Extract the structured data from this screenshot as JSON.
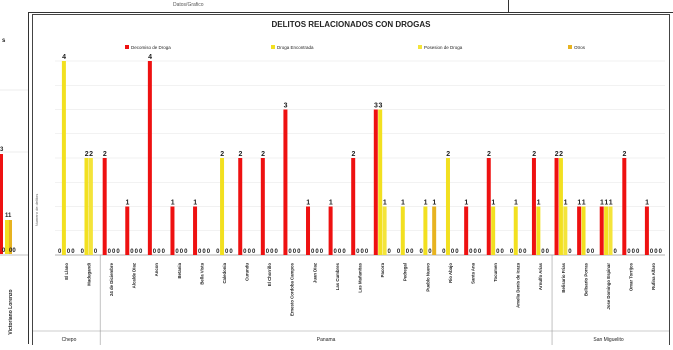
{
  "header": {
    "subtitle": "Datos/Grafico"
  },
  "left_partial": {
    "panel_label": "s",
    "value_label": "3",
    "tick_labels": [
      "11",
      "0",
      "00"
    ],
    "category_label": "Victoriano Lorenzo"
  },
  "colors": {
    "decomiso": "#ee1111",
    "encontrada": "#f2e020",
    "posesion": "#f4e43a",
    "otros": "#e7b320",
    "grid": "#e4e4e4",
    "title": "#222222"
  },
  "chart_data": {
    "type": "bar",
    "title": "DELITOS RELACIONADOS CON DROGAS",
    "ylabel": "Numero de delitos",
    "ylim": [
      0,
      4
    ],
    "legend_position": "top",
    "categories": [
      "El Llano",
      "Madugandi",
      "24 de Diciembre",
      "Alcalde Diaz",
      "Ancon",
      "Betania",
      "Bella Vista",
      "Caledonia",
      "Curundu",
      "El Chorrillo",
      "Ernesto Cordoba Campos",
      "Juan Diaz",
      "Las Cumbres",
      "Las Mañanitas",
      "Pacora",
      "Pedregal",
      "Pueblo Nuevo",
      "Rio Abajo",
      "Santa Ana",
      "Tocumen",
      "Amelia Denis de Icaza",
      "Arnulfo Arias",
      "Belisario Frias",
      "Belisario Porras",
      "Jose Domingo Espinar",
      "Omar Torrijos",
      "Rufina Alfaro"
    ],
    "series": [
      {
        "name": "Decomiso de Droga",
        "values": [
          0,
          0,
          2,
          1,
          4,
          1,
          1,
          0,
          2,
          2,
          3,
          1,
          1,
          2,
          3,
          0,
          0,
          0,
          1,
          2,
          0,
          2,
          2,
          1,
          1,
          2,
          1
        ]
      },
      {
        "name": "Droga Encontrada",
        "values": [
          4,
          2,
          0,
          0,
          0,
          0,
          0,
          2,
          0,
          0,
          0,
          0,
          0,
          0,
          3,
          1,
          1,
          2,
          0,
          1,
          1,
          1,
          2,
          1,
          1,
          0,
          0
        ]
      },
      {
        "name": "Posesion de Droga",
        "values": [
          0,
          2,
          0,
          0,
          0,
          0,
          0,
          0,
          0,
          0,
          0,
          0,
          0,
          0,
          1,
          0,
          0,
          0,
          0,
          0,
          0,
          0,
          1,
          0,
          1,
          0,
          0
        ]
      },
      {
        "name": "Otros",
        "values": [
          0,
          0,
          0,
          0,
          0,
          0,
          0,
          0,
          0,
          0,
          0,
          0,
          0,
          0,
          0,
          0,
          1,
          0,
          0,
          0,
          0,
          0,
          0,
          0,
          0,
          0,
          0
        ]
      }
    ],
    "groups": [
      {
        "name": "Chepo",
        "first": 0,
        "last": 1
      },
      {
        "name": "Panama",
        "first": 2,
        "last": 21
      },
      {
        "name": "San Miguelito",
        "first": 22,
        "last": 26
      }
    ]
  }
}
